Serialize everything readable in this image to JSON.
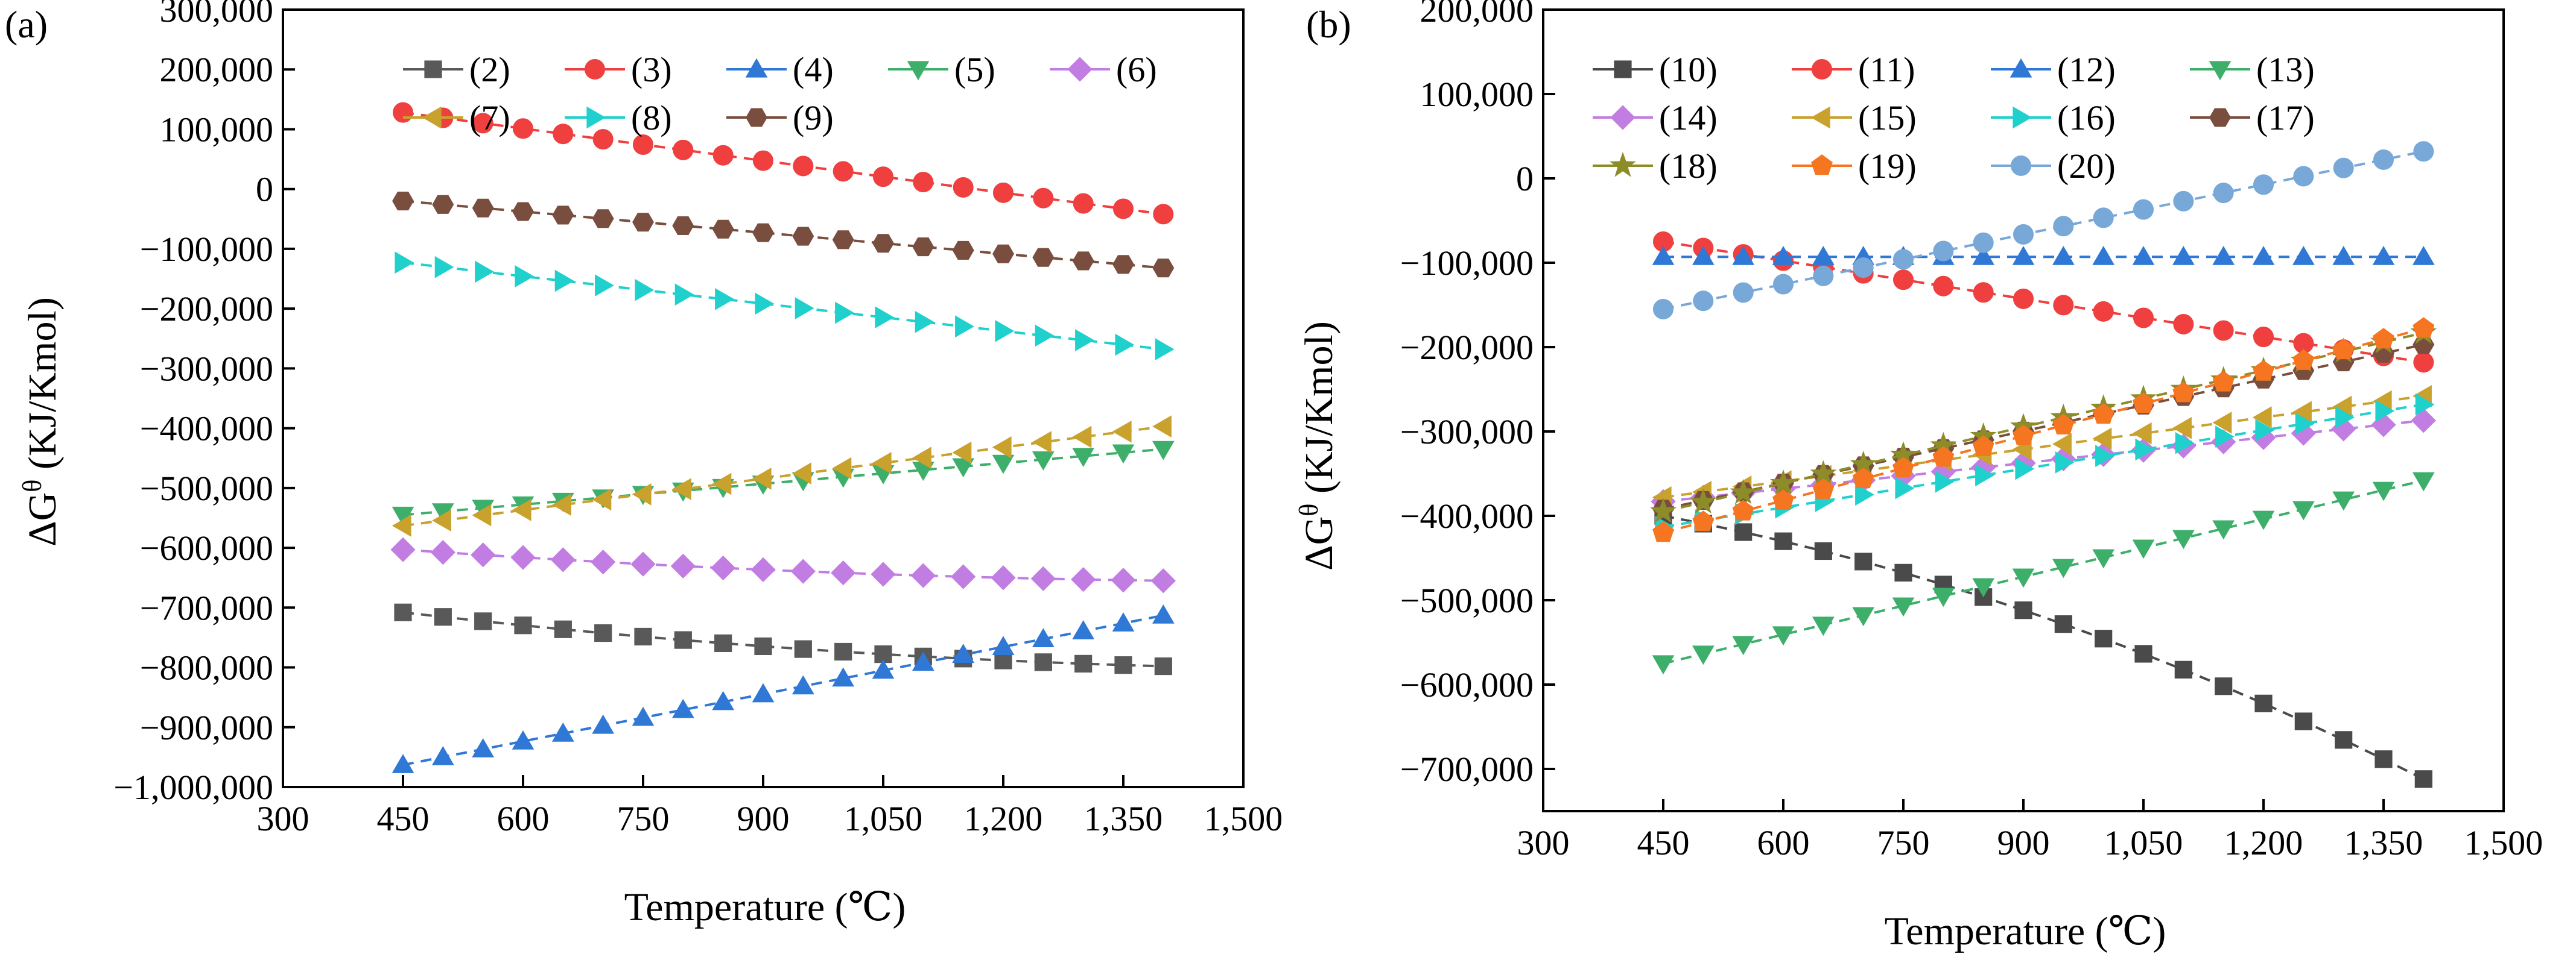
{
  "colors": {
    "s2": "#595959",
    "s3": "#EF3F3F",
    "s4": "#2F78D6",
    "s5": "#3EAF6A",
    "s6": "#C27DE3",
    "s7": "#C9A12D",
    "s8": "#20D0CC",
    "s9": "#7A4E3E",
    "s10": "#4A4A4A",
    "s11": "#EF3F3F",
    "s12": "#2F78D6",
    "s13": "#3EAF6A",
    "s14": "#C27DE3",
    "s15": "#C9A12D",
    "s16": "#20D0CC",
    "s17": "#7A4E3E",
    "s18": "#8C8C28",
    "s19": "#F57520",
    "s20": "#78A8D8"
  },
  "chart_data": [
    {
      "type": "line",
      "panel_label": "(a)",
      "xlabel": "Temperature (℃)",
      "ylabel_prefix": "ΔG",
      "ylabel_sup": "θ",
      "ylabel_suffix": " (KJ/Kmol)",
      "xlim": [
        300,
        1500
      ],
      "ylim": [
        -1000000,
        300000
      ],
      "xticks": [
        300,
        450,
        600,
        750,
        900,
        1050,
        1200,
        1350,
        1500
      ],
      "xtick_labels": [
        "300",
        "450",
        "600",
        "750",
        "900",
        "1,050",
        "1,200",
        "1,350",
        "1,500"
      ],
      "yticks": [
        -1000000,
        -900000,
        -800000,
        -700000,
        -600000,
        -500000,
        -400000,
        -300000,
        -200000,
        -100000,
        0,
        100000,
        200000,
        300000
      ],
      "ytick_labels": [
        "−1,000,000",
        "−900,000",
        "−800,000",
        "−700,000",
        "−600,000",
        "−500,000",
        "−400,000",
        "−300,000",
        "−200,000",
        "−100,000",
        "0",
        "100,000",
        "200,000",
        "300,000"
      ],
      "x": [
        450,
        500,
        550,
        600,
        650,
        700,
        750,
        800,
        850,
        900,
        950,
        1000,
        1050,
        1100,
        1150,
        1200,
        1250,
        1300,
        1350,
        1400
      ],
      "legend_columns": 5,
      "series": [
        {
          "name": "(2)",
          "marker": "square",
          "color_key": "s2",
          "start": -708000,
          "end": -798000,
          "mid": -767000
        },
        {
          "name": "(3)",
          "marker": "circle",
          "color_key": "s3",
          "start": 128000,
          "end": -42000
        },
        {
          "name": "(4)",
          "marker": "triangle-up",
          "color_key": "s4",
          "start": -963000,
          "end": -713000
        },
        {
          "name": "(5)",
          "marker": "triangle-down",
          "color_key": "s5",
          "start": -545000,
          "end": -435000
        },
        {
          "name": "(6)",
          "marker": "diamond",
          "color_key": "s6",
          "start": -603000,
          "end": -655000,
          "mid": -638000
        },
        {
          "name": "(7)",
          "marker": "triangle-left",
          "color_key": "s7",
          "start": -563000,
          "end": -397000
        },
        {
          "name": "(8)",
          "marker": "triangle-right",
          "color_key": "s8",
          "start": -123000,
          "end": -268000
        },
        {
          "name": "(9)",
          "marker": "hexagon",
          "color_key": "s9",
          "start": -20000,
          "end": -132000
        }
      ]
    },
    {
      "type": "line",
      "panel_label": "(b)",
      "xlabel": "Temperature (℃)",
      "ylabel_prefix": "ΔG",
      "ylabel_sup": "θ",
      "ylabel_suffix": " (KJ/Kmol)",
      "xlim": [
        300,
        1500
      ],
      "ylim": [
        -750000,
        200000
      ],
      "xticks": [
        300,
        450,
        600,
        750,
        900,
        1050,
        1200,
        1350,
        1500
      ],
      "xtick_labels": [
        "300",
        "450",
        "600",
        "750",
        "900",
        "1,050",
        "1,200",
        "1,350",
        "1,500"
      ],
      "yticks": [
        -700000,
        -600000,
        -500000,
        -400000,
        -300000,
        -200000,
        -100000,
        0,
        100000,
        200000
      ],
      "ytick_labels": [
        "−700,000",
        "−600,000",
        "−500,000",
        "−400,000",
        "−300,000",
        "−200,000",
        "−100,000",
        "0",
        "100,000",
        "200,000"
      ],
      "x": [
        450,
        500,
        550,
        600,
        650,
        700,
        750,
        800,
        850,
        900,
        950,
        1000,
        1050,
        1100,
        1150,
        1200,
        1250,
        1300,
        1350,
        1400
      ],
      "legend_columns": 4,
      "series": [
        {
          "name": "(10)",
          "marker": "square",
          "color_key": "s10",
          "start": -400000,
          "end": -712000,
          "mid": -520000
        },
        {
          "name": "(11)",
          "marker": "circle",
          "color_key": "s11",
          "start": -75000,
          "end": -218000
        },
        {
          "name": "(12)",
          "marker": "triangle-up",
          "color_key": "s12",
          "start": -93000,
          "end": -93000
        },
        {
          "name": "(13)",
          "marker": "triangle-down",
          "color_key": "s13",
          "start": -575000,
          "end": -358000
        },
        {
          "name": "(14)",
          "marker": "diamond",
          "color_key": "s14",
          "start": -383000,
          "end": -287000
        },
        {
          "name": "(15)",
          "marker": "triangle-left",
          "color_key": "s15",
          "start": -378000,
          "end": -258000
        },
        {
          "name": "(16)",
          "marker": "triangle-right",
          "color_key": "s16",
          "start": -413000,
          "end": -268000
        },
        {
          "name": "(17)",
          "marker": "hexagon",
          "color_key": "s17",
          "start": -392000,
          "end": -197000
        },
        {
          "name": "(18)",
          "marker": "star",
          "color_key": "s18",
          "start": -395000,
          "end": -183000
        },
        {
          "name": "(19)",
          "marker": "pentagon",
          "color_key": "s19",
          "start": -420000,
          "end": -178000
        },
        {
          "name": "(20)",
          "marker": "circle",
          "color_key": "s20",
          "start": -155000,
          "end": 32000
        }
      ]
    }
  ]
}
